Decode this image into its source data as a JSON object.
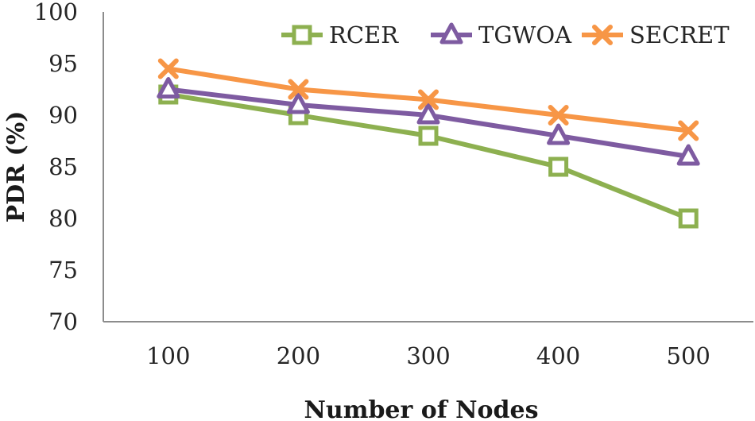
{
  "chart_data": {
    "type": "line",
    "title": "",
    "xlabel": "Number of Nodes",
    "ylabel": "PDR (%)",
    "categories": [
      "100",
      "200",
      "300",
      "400",
      "500"
    ],
    "ylim": [
      70,
      100
    ],
    "yticks": [
      70,
      75,
      80,
      85,
      90,
      95,
      100
    ],
    "grid": false,
    "legend_position": "top-right",
    "series": [
      {
        "name": "RCER",
        "marker": "square",
        "color": "#8db050",
        "values": [
          92,
          90,
          88,
          85,
          80
        ]
      },
      {
        "name": "TGWOA",
        "marker": "triangle",
        "color": "#7e5ba1",
        "values": [
          92.5,
          91,
          90,
          88,
          86
        ]
      },
      {
        "name": "SECRET",
        "marker": "x",
        "color": "#f79646",
        "values": [
          94.5,
          92.5,
          91.5,
          90,
          88.5
        ]
      }
    ]
  }
}
